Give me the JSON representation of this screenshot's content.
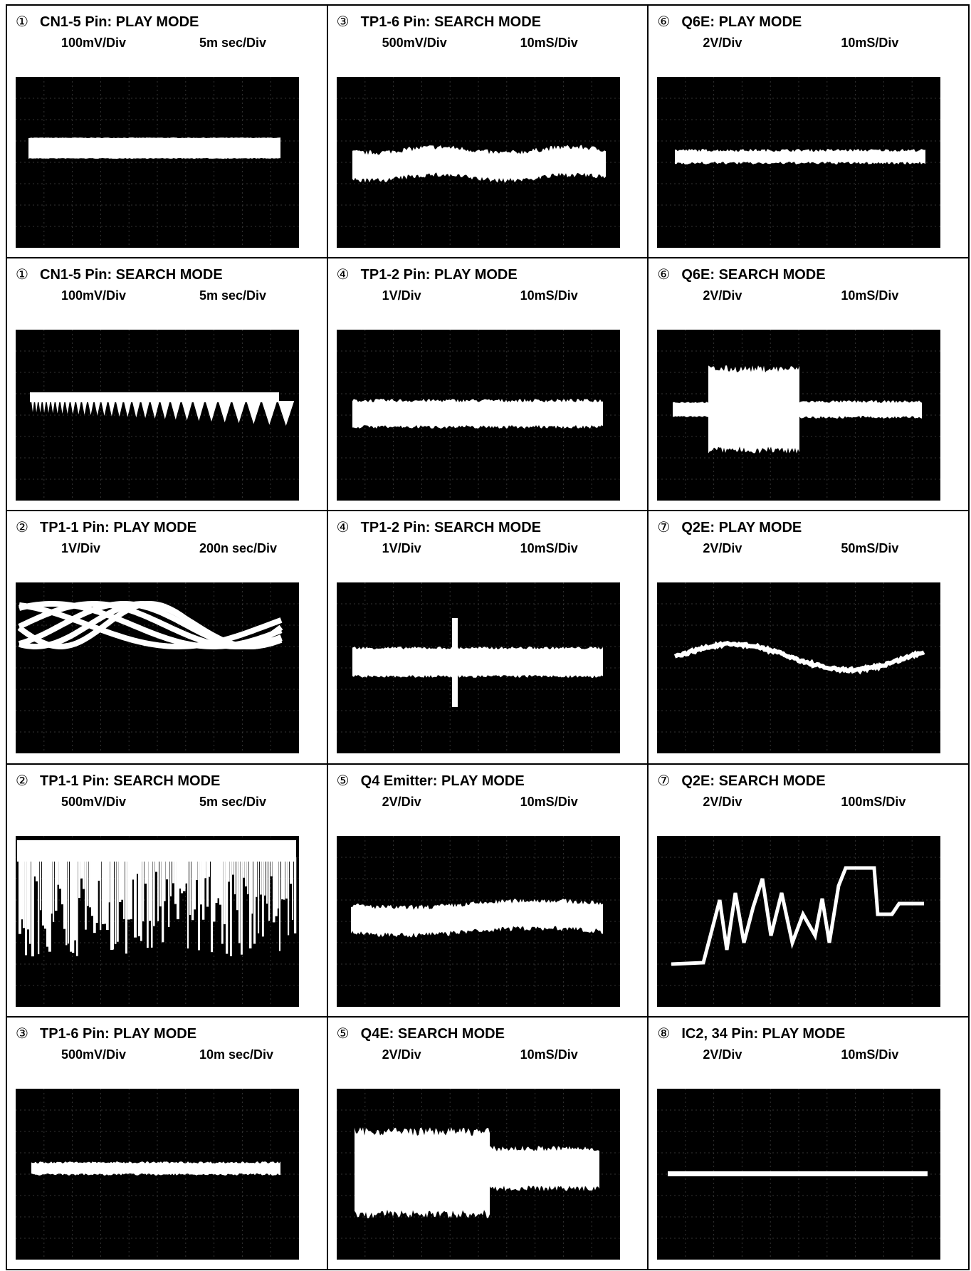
{
  "rows": [
    [
      {
        "number": "①",
        "title": "CN1-5 Pin:  PLAY MODE",
        "vdiv": "100mV/Div",
        "hdiv": "5m sec/Div"
      },
      {
        "number": "③",
        "title": "TP1-6 Pin:  SEARCH MODE",
        "vdiv": "500mV/Div",
        "hdiv": "10mS/Div"
      },
      {
        "number": "⑥",
        "title": "Q6E:  PLAY MODE",
        "vdiv": "2V/Div",
        "hdiv": "10mS/Div"
      }
    ],
    [
      {
        "number": "①",
        "title": "CN1-5 Pin:  SEARCH MODE",
        "vdiv": "100mV/Div",
        "hdiv": "5m sec/Div"
      },
      {
        "number": "④",
        "title": "TP1-2 Pin:  PLAY MODE",
        "vdiv": "1V/Div",
        "hdiv": "10mS/Div"
      },
      {
        "number": "⑥",
        "title": "Q6E:  SEARCH MODE",
        "vdiv": "2V/Div",
        "hdiv": "10mS/Div"
      }
    ],
    [
      {
        "number": "②",
        "title": "TP1-1 Pin:  PLAY MODE",
        "vdiv": "1V/Div",
        "hdiv": "200n sec/Div"
      },
      {
        "number": "④",
        "title": "TP1-2 Pin:  SEARCH MODE",
        "vdiv": "1V/Div",
        "hdiv": "10mS/Div"
      },
      {
        "number": "⑦",
        "title": "Q2E:  PLAY MODE",
        "vdiv": "2V/Div",
        "hdiv": "50mS/Div"
      }
    ],
    [
      {
        "number": "②",
        "title": "TP1-1 Pin:  SEARCH MODE",
        "vdiv": "500mV/Div",
        "hdiv": "5m sec/Div"
      },
      {
        "number": "⑤",
        "title": "Q4 Emitter:  PLAY MODE",
        "vdiv": "2V/Div",
        "hdiv": "10mS/Div"
      },
      {
        "number": "⑦",
        "title": "Q2E:  SEARCH MODE",
        "vdiv": "2V/Div",
        "hdiv": "100mS/Div"
      }
    ],
    [
      {
        "number": "③",
        "title": "TP1-6 Pin:  PLAY MODE",
        "vdiv": "500mV/Div",
        "hdiv": "10m sec/Div"
      },
      {
        "number": "⑤",
        "title": "Q4E:  SEARCH MODE",
        "vdiv": "2V/Div",
        "hdiv": "10mS/Div"
      },
      {
        "number": "⑧",
        "title": "IC2, 34 Pin:  PLAY MODE",
        "vdiv": "2V/Div",
        "hdiv": "10mS/Div"
      }
    ]
  ]
}
